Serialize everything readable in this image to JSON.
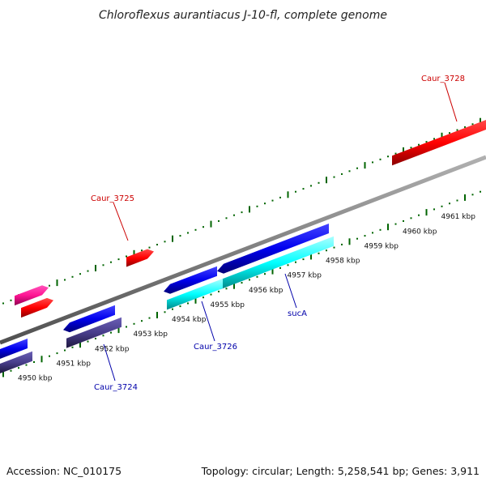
{
  "title": "Chloroflexus aurantiacus J-10-fl, complete genome",
  "footer": {
    "accession": "Accession: NC_010175",
    "summary": "Topology: circular; Length: 5,258,541 bp; Genes: 3,911"
  },
  "scale_ticks": [
    {
      "label": "4950 kbp",
      "kbp": 4950
    },
    {
      "label": "4951 kbp",
      "kbp": 4951
    },
    {
      "label": "4952 kbp",
      "kbp": 4952
    },
    {
      "label": "4953 kbp",
      "kbp": 4953
    },
    {
      "label": "4954 kbp",
      "kbp": 4954
    },
    {
      "label": "4955 kbp",
      "kbp": 4955
    },
    {
      "label": "4956 kbp",
      "kbp": 4956
    },
    {
      "label": "4957 kbp",
      "kbp": 4957
    },
    {
      "label": "4958 kbp",
      "kbp": 4958
    },
    {
      "label": "4959 kbp",
      "kbp": 4959
    },
    {
      "label": "4960 kbp",
      "kbp": 4960
    },
    {
      "label": "4961 kbp",
      "kbp": 4961
    }
  ],
  "gene_labels": [
    {
      "text": "Caur_3728",
      "color": "#cc0000"
    },
    {
      "text": "Caur_3725",
      "color": "#cc0000"
    },
    {
      "text": "Caur_3726",
      "color": "#0000aa"
    },
    {
      "text": "sucA",
      "color": "#0000aa"
    },
    {
      "text": "Caur_3724",
      "color": "#0000aa"
    }
  ],
  "colors": {
    "forward_gene": "#ff0000",
    "forward_pink": "#ff1493",
    "reverse_gene": "#0000ee",
    "reverse_cyan": "#00ffff",
    "reverse_purple": "#483d8b",
    "backbone": "#808080",
    "tick": "#006400"
  }
}
